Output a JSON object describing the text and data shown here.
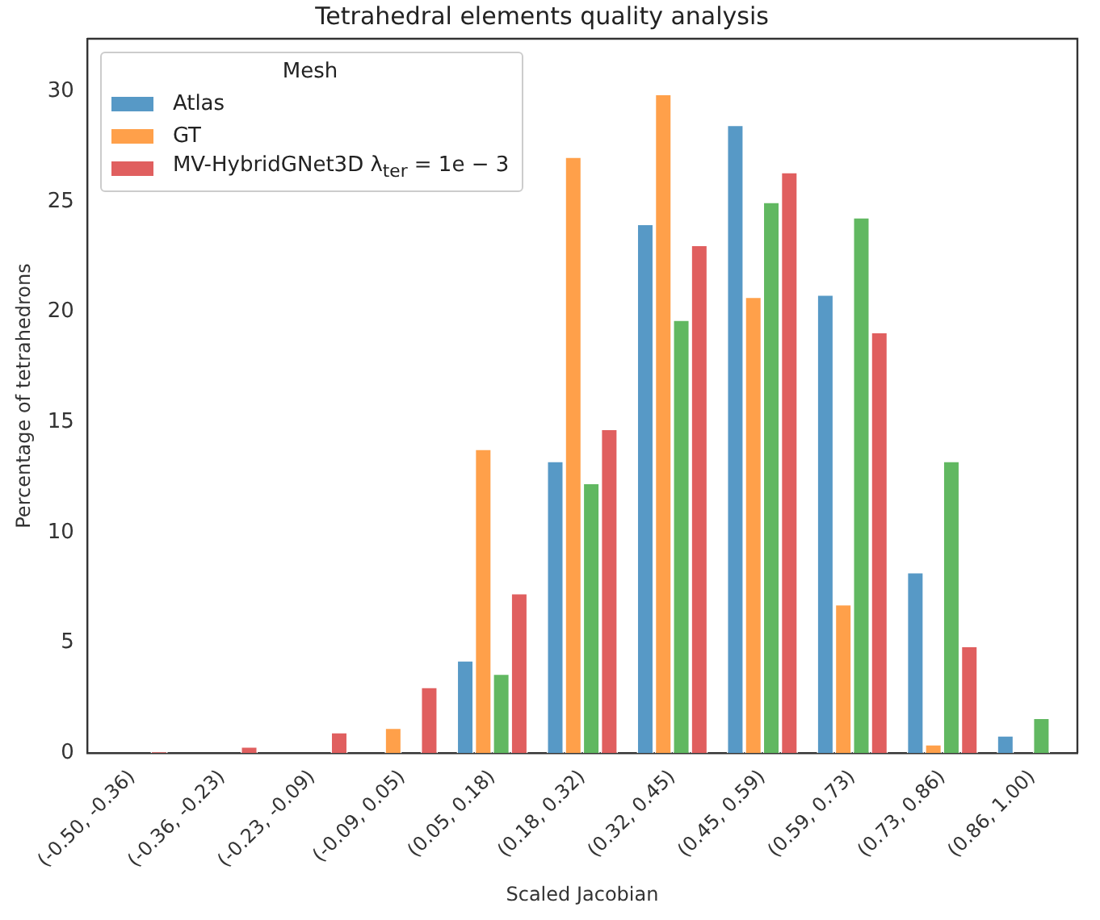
{
  "chart_data": {
    "type": "bar",
    "title": "Tetrahedral elements quality analysis",
    "xlabel": "Scaled Jacobian",
    "ylabel": "Percentage of tetrahedrons",
    "legend_title": "Mesh",
    "legend": "top left",
    "grid": false,
    "categories": [
      "(-0.50, -0.36)",
      "(-0.36, -0.23)",
      "(-0.23, -0.09)",
      "(-0.09, 0.05)",
      "(0.05, 0.18)",
      "(0.18, 0.32)",
      "(0.32, 0.45)",
      "(0.45, 0.59)",
      "(0.59, 0.73)",
      "(0.73, 0.86)",
      "(0.86, 1.00)"
    ],
    "ylim": [
      0,
      32.4
    ],
    "yticks": [
      0,
      5,
      10,
      15,
      20,
      25,
      30
    ],
    "series": [
      {
        "name": "Atlas",
        "color": "#5799c6",
        "values": [
          0,
          0,
          0,
          0,
          4.2,
          13.25,
          24.0,
          28.5,
          20.8,
          8.2,
          0.8
        ]
      },
      {
        "name": "GT",
        "color": "#ffa04a",
        "values": [
          0,
          0,
          0,
          1.15,
          13.8,
          27.05,
          29.9,
          20.7,
          6.75,
          0.4,
          0
        ]
      },
      {
        "color": "#61b861",
        "values": [
          0,
          0,
          0,
          0,
          3.6,
          12.25,
          19.65,
          25.0,
          24.3,
          13.25,
          1.6
        ]
      },
      {
        "name": "MV-HybridGNet3D λ$_{ter}$ = 1e − 3",
        "color": "#e05f5f",
        "values": [
          0.05,
          0.3,
          0.95,
          3.0,
          7.25,
          14.7,
          23.05,
          26.35,
          19.1,
          4.85,
          0
        ]
      }
    ]
  }
}
